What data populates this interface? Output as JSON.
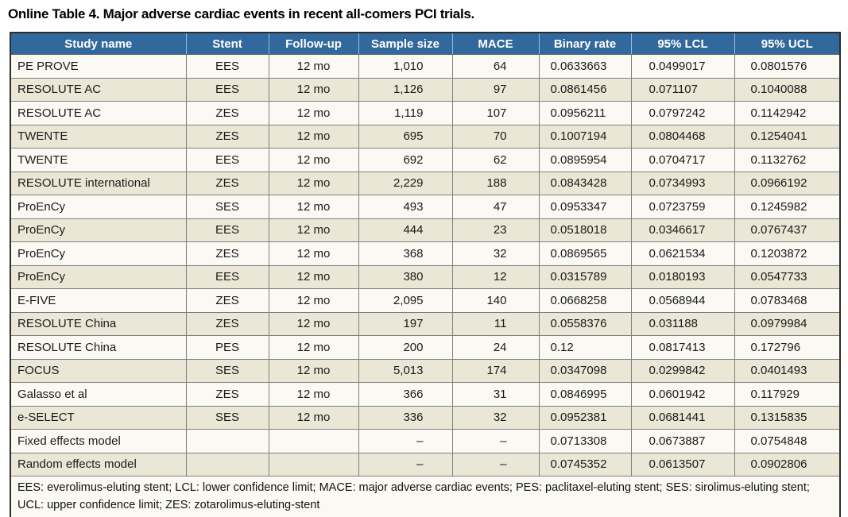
{
  "title": "Online Table 4. Major adverse cardiac events in recent all-comers PCI trials.",
  "colors": {
    "header_bg": "#31689E",
    "row_bg": "#FAF9F3",
    "row_alt_bg": "#EBE7D6",
    "header_text": "#FFFFFF"
  },
  "table": {
    "columns": [
      "Study name",
      "Stent",
      "Follow-up",
      "Sample size",
      "MACE",
      "Binary rate",
      "95% LCL",
      "95% UCL"
    ],
    "rows": [
      [
        "PE PROVE",
        "EES",
        "12 mo",
        "1,010",
        "64",
        "0.0633663",
        "0.0499017",
        "0.0801576"
      ],
      [
        "RESOLUTE AC",
        "EES",
        "12 mo",
        "1,126",
        "97",
        "0.0861456",
        "0.071107",
        "0.1040088"
      ],
      [
        "RESOLUTE AC",
        "ZES",
        "12 mo",
        "1,119",
        "107",
        "0.0956211",
        "0.0797242",
        "0.1142942"
      ],
      [
        "TWENTE",
        "ZES",
        "12 mo",
        "695",
        "70",
        "0.1007194",
        "0.0804468",
        "0.1254041"
      ],
      [
        "TWENTE",
        "EES",
        "12 mo",
        "692",
        "62",
        "0.0895954",
        "0.0704717",
        "0.1132762"
      ],
      [
        "RESOLUTE international",
        "ZES",
        "12 mo",
        "2,229",
        "188",
        "0.0843428",
        "0.0734993",
        "0.0966192"
      ],
      [
        "ProEnCy",
        "SES",
        "12 mo",
        "493",
        "47",
        "0.0953347",
        "0.0723759",
        "0.1245982"
      ],
      [
        "ProEnCy",
        "EES",
        "12 mo",
        "444",
        "23",
        "0.0518018",
        "0.0346617",
        "0.0767437"
      ],
      [
        "ProEnCy",
        "ZES",
        "12 mo",
        "368",
        "32",
        "0.0869565",
        "0.0621534",
        "0.1203872"
      ],
      [
        "ProEnCy",
        "EES",
        "12 mo",
        "380",
        "12",
        "0.0315789",
        "0.0180193",
        "0.0547733"
      ],
      [
        "E-FIVE",
        "ZES",
        "12 mo",
        "2,095",
        "140",
        "0.0668258",
        "0.0568944",
        "0.0783468"
      ],
      [
        "RESOLUTE China",
        "ZES",
        "12 mo",
        "197",
        "11",
        "0.0558376",
        "0.031188",
        "0.0979984"
      ],
      [
        "RESOLUTE China",
        "PES",
        "12 mo",
        "200",
        "24",
        "0.12",
        "0.0817413",
        "0.172796"
      ],
      [
        "FOCUS",
        "SES",
        "12 mo",
        "5,013",
        "174",
        "0.0347098",
        "0.0299842",
        "0.0401493"
      ],
      [
        "Galasso et al",
        "ZES",
        "12 mo",
        "366",
        "31",
        "0.0846995",
        "0.0601942",
        "0.117929"
      ],
      [
        "e-SELECT",
        "SES",
        "12 mo",
        "336",
        "32",
        "0.0952381",
        "0.0681441",
        "0.1315835"
      ],
      [
        "Fixed effects model",
        "",
        "",
        "–",
        "–",
        "0.0713308",
        "0.0673887",
        "0.0754848"
      ],
      [
        "Random effects model",
        "",
        "",
        "–",
        "–",
        "0.0745352",
        "0.0613507",
        "0.0902806"
      ]
    ],
    "footnote": "EES: everolimus-eluting stent; LCL: lower confidence limit; MACE: major adverse cardiac events; PES: paclitaxel-eluting stent; SES: sirolimus-eluting stent; UCL: upper confidence limit; ZES: zotarolimus-eluting-stent"
  }
}
